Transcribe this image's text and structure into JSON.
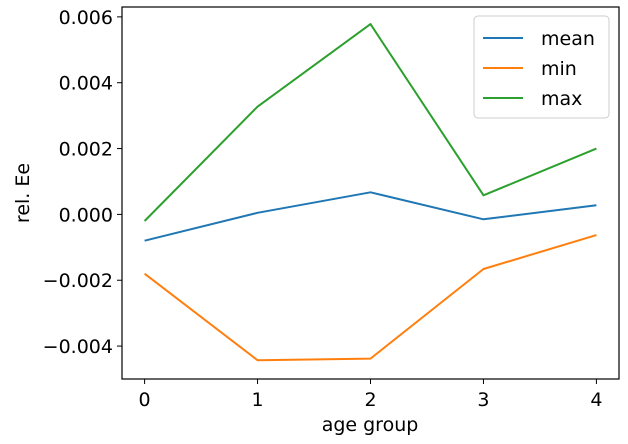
{
  "chart_data": {
    "type": "line",
    "x": [
      0,
      1,
      2,
      3,
      4
    ],
    "xticks": [
      "0",
      "1",
      "2",
      "3",
      "4"
    ],
    "yticks": [
      -0.004,
      -0.002,
      0.0,
      0.002,
      0.004,
      0.006
    ],
    "ytick_labels": [
      "−0.004",
      "−0.002",
      "0.000",
      "0.002",
      "0.004",
      "0.006"
    ],
    "xlim": [
      -0.2,
      4.2
    ],
    "ylim": [
      -0.005,
      0.0063
    ],
    "xlabel": "age group",
    "ylabel": "rel. Ee",
    "grid": false,
    "legend_position": "top-right",
    "series": [
      {
        "name": "mean",
        "color": "#1f77b4",
        "values": [
          -0.0008,
          5e-05,
          0.00067,
          -0.00015,
          0.00028
        ]
      },
      {
        "name": "min",
        "color": "#ff7f0e",
        "values": [
          -0.0018,
          -0.00443,
          -0.00438,
          -0.00166,
          -0.00063
        ]
      },
      {
        "name": "max",
        "color": "#2ca02c",
        "values": [
          -0.0002,
          0.00327,
          0.00578,
          0.00058,
          0.002
        ]
      }
    ]
  }
}
